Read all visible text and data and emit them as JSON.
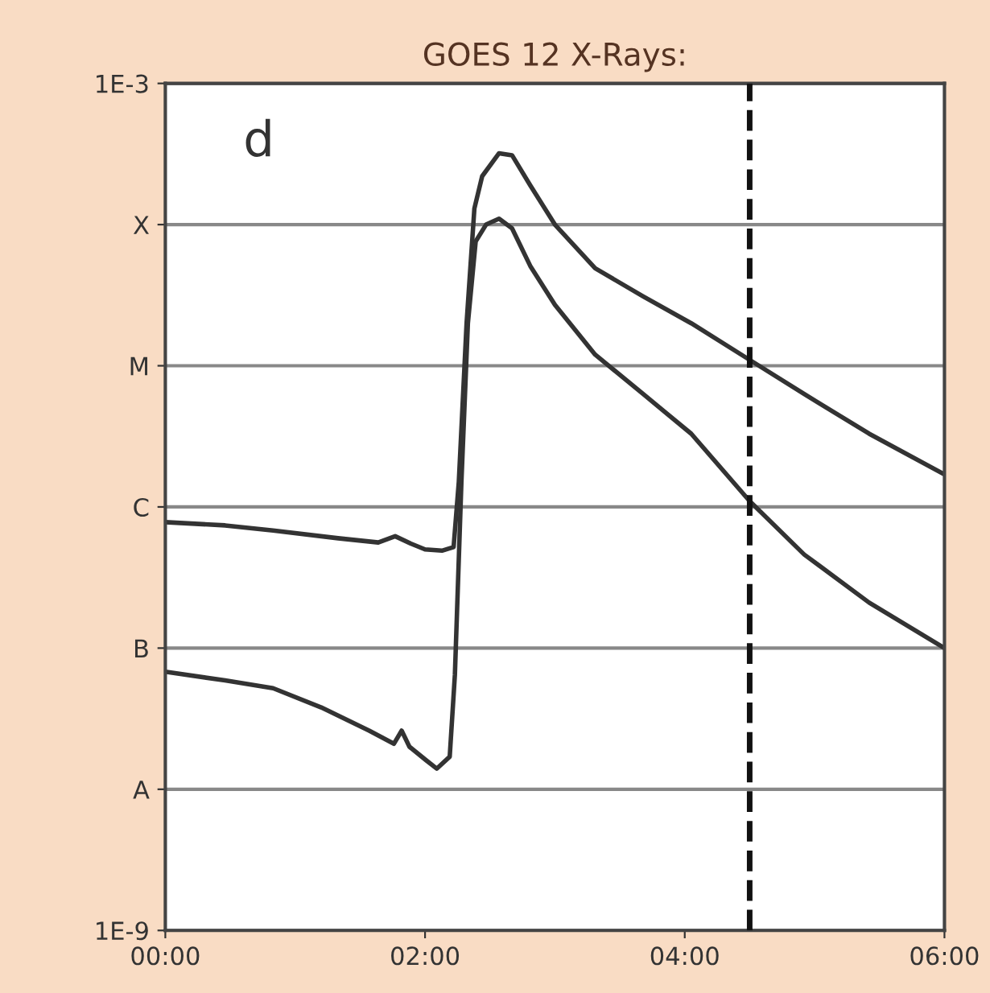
{
  "chart_data": {
    "type": "line",
    "title": "GOES 12 X-Rays:",
    "annotations": [
      "d"
    ],
    "xlim": [
      0,
      6
    ],
    "xticks": [
      {
        "value": 0,
        "label": "00:00"
      },
      {
        "value": 2,
        "label": "02:00"
      },
      {
        "value": 4,
        "label": "04:00"
      },
      {
        "value": 6,
        "label": "06:00"
      }
    ],
    "log": true,
    "ylim": [
      1e-09,
      0.001
    ],
    "yticks": [
      {
        "value": 1e-09,
        "label": "1E-9"
      },
      {
        "value": 1e-08,
        "label": "A"
      },
      {
        "value": 1e-07,
        "label": "B"
      },
      {
        "value": 1e-06,
        "label": "C"
      },
      {
        "value": 1e-05,
        "label": "M"
      },
      {
        "value": 0.0001,
        "label": "X"
      },
      {
        "value": 0.001,
        "label": "1E-3"
      }
    ],
    "grid": "y",
    "legend": false,
    "marker": "none",
    "line_style": "solid",
    "ref_lines": [
      {
        "axis": "x",
        "value": 4.5,
        "color": "#111111",
        "line_style": "dashed"
      }
    ],
    "series": [
      {
        "color": "#333333",
        "x": [
          0,
          0.46,
          0.83,
          1.33,
          1.64,
          1.77,
          1.89,
          2.0,
          2.13,
          2.22,
          2.26,
          2.32,
          2.38,
          2.44,
          2.57,
          2.67,
          2.81,
          3.0,
          3.31,
          3.68,
          4.05,
          4.5,
          4.92,
          5.42,
          6.0
        ],
        "values": [
          7.8e-07,
          7.4e-07,
          6.8e-07,
          6e-07,
          5.6e-07,
          6.2e-07,
          5.5e-07,
          5e-07,
          4.9e-07,
          5.2e-07,
          1.5e-06,
          2e-05,
          0.00013,
          0.00022,
          0.00032,
          0.00031,
          0.00019,
          0.0001,
          4.9e-05,
          3.1e-05,
          2e-05,
          1.1e-05,
          6.3e-06,
          3.3e-06,
          1.7e-06
        ]
      },
      {
        "color": "#333333",
        "x": [
          0,
          0.46,
          0.83,
          1.2,
          1.57,
          1.76,
          1.82,
          1.88,
          2.01,
          2.09,
          2.19,
          2.23,
          2.28,
          2.33,
          2.39,
          2.47,
          2.57,
          2.67,
          2.81,
          3.0,
          3.31,
          3.68,
          4.05,
          4.5,
          4.92,
          5.42,
          6.0
        ],
        "values": [
          6.8e-08,
          5.9e-08,
          5.2e-08,
          3.8e-08,
          2.6e-08,
          2.1e-08,
          2.6e-08,
          2e-08,
          1.6e-08,
          1.4e-08,
          1.7e-08,
          6.5e-08,
          1.5e-06,
          2e-05,
          7.6e-05,
          0.0001,
          0.00011,
          9.4e-05,
          5.1e-05,
          2.7e-05,
          1.2e-05,
          6.3e-06,
          3.3e-06,
          1.1e-06,
          4.6e-07,
          2.1e-07,
          1e-07
        ]
      }
    ]
  }
}
